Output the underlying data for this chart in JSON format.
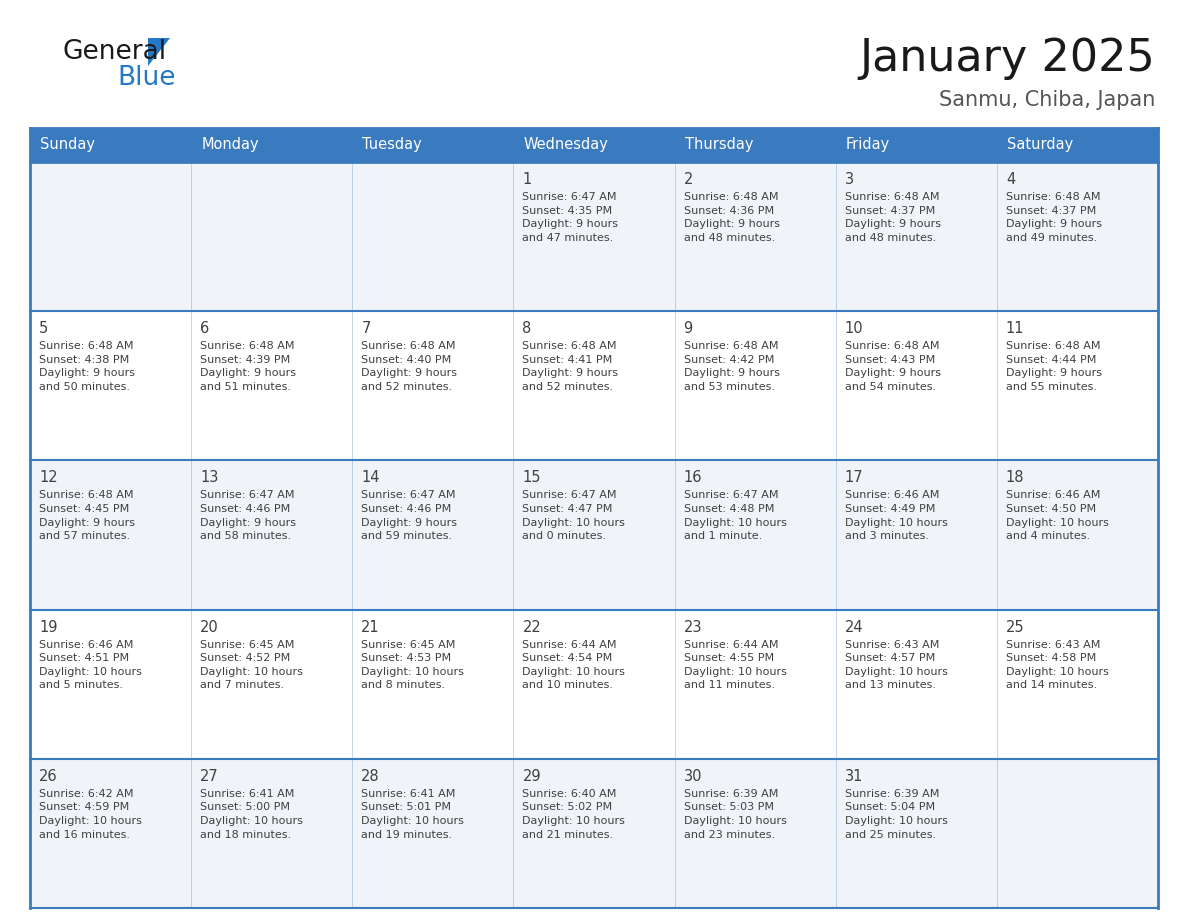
{
  "title": "January 2025",
  "subtitle": "Sanmu, Chiba, Japan",
  "header_color": "#3a7abf",
  "header_text_color": "#ffffff",
  "row_bg_colors": [
    "#f0f4f8",
    "#ffffff"
  ],
  "border_color": "#3a7abf",
  "text_color": "#404040",
  "days_of_week": [
    "Sunday",
    "Monday",
    "Tuesday",
    "Wednesday",
    "Thursday",
    "Friday",
    "Saturday"
  ],
  "calendar_data": [
    [
      "",
      "",
      "",
      "1\nSunrise: 6:47 AM\nSunset: 4:35 PM\nDaylight: 9 hours\nand 47 minutes.",
      "2\nSunrise: 6:48 AM\nSunset: 4:36 PM\nDaylight: 9 hours\nand 48 minutes.",
      "3\nSunrise: 6:48 AM\nSunset: 4:37 PM\nDaylight: 9 hours\nand 48 minutes.",
      "4\nSunrise: 6:48 AM\nSunset: 4:37 PM\nDaylight: 9 hours\nand 49 minutes."
    ],
    [
      "5\nSunrise: 6:48 AM\nSunset: 4:38 PM\nDaylight: 9 hours\nand 50 minutes.",
      "6\nSunrise: 6:48 AM\nSunset: 4:39 PM\nDaylight: 9 hours\nand 51 minutes.",
      "7\nSunrise: 6:48 AM\nSunset: 4:40 PM\nDaylight: 9 hours\nand 52 minutes.",
      "8\nSunrise: 6:48 AM\nSunset: 4:41 PM\nDaylight: 9 hours\nand 52 minutes.",
      "9\nSunrise: 6:48 AM\nSunset: 4:42 PM\nDaylight: 9 hours\nand 53 minutes.",
      "10\nSunrise: 6:48 AM\nSunset: 4:43 PM\nDaylight: 9 hours\nand 54 minutes.",
      "11\nSunrise: 6:48 AM\nSunset: 4:44 PM\nDaylight: 9 hours\nand 55 minutes."
    ],
    [
      "12\nSunrise: 6:48 AM\nSunset: 4:45 PM\nDaylight: 9 hours\nand 57 minutes.",
      "13\nSunrise: 6:47 AM\nSunset: 4:46 PM\nDaylight: 9 hours\nand 58 minutes.",
      "14\nSunrise: 6:47 AM\nSunset: 4:46 PM\nDaylight: 9 hours\nand 59 minutes.",
      "15\nSunrise: 6:47 AM\nSunset: 4:47 PM\nDaylight: 10 hours\nand 0 minutes.",
      "16\nSunrise: 6:47 AM\nSunset: 4:48 PM\nDaylight: 10 hours\nand 1 minute.",
      "17\nSunrise: 6:46 AM\nSunset: 4:49 PM\nDaylight: 10 hours\nand 3 minutes.",
      "18\nSunrise: 6:46 AM\nSunset: 4:50 PM\nDaylight: 10 hours\nand 4 minutes."
    ],
    [
      "19\nSunrise: 6:46 AM\nSunset: 4:51 PM\nDaylight: 10 hours\nand 5 minutes.",
      "20\nSunrise: 6:45 AM\nSunset: 4:52 PM\nDaylight: 10 hours\nand 7 minutes.",
      "21\nSunrise: 6:45 AM\nSunset: 4:53 PM\nDaylight: 10 hours\nand 8 minutes.",
      "22\nSunrise: 6:44 AM\nSunset: 4:54 PM\nDaylight: 10 hours\nand 10 minutes.",
      "23\nSunrise: 6:44 AM\nSunset: 4:55 PM\nDaylight: 10 hours\nand 11 minutes.",
      "24\nSunrise: 6:43 AM\nSunset: 4:57 PM\nDaylight: 10 hours\nand 13 minutes.",
      "25\nSunrise: 6:43 AM\nSunset: 4:58 PM\nDaylight: 10 hours\nand 14 minutes."
    ],
    [
      "26\nSunrise: 6:42 AM\nSunset: 4:59 PM\nDaylight: 10 hours\nand 16 minutes.",
      "27\nSunrise: 6:41 AM\nSunset: 5:00 PM\nDaylight: 10 hours\nand 18 minutes.",
      "28\nSunrise: 6:41 AM\nSunset: 5:01 PM\nDaylight: 10 hours\nand 19 minutes.",
      "29\nSunrise: 6:40 AM\nSunset: 5:02 PM\nDaylight: 10 hours\nand 21 minutes.",
      "30\nSunrise: 6:39 AM\nSunset: 5:03 PM\nDaylight: 10 hours\nand 23 minutes.",
      "31\nSunrise: 6:39 AM\nSunset: 5:04 PM\nDaylight: 10 hours\nand 25 minutes.",
      ""
    ]
  ],
  "logo_color_general": "#1a1a1a",
  "logo_color_blue": "#2478c8",
  "title_fontsize": 32,
  "subtitle_fontsize": 15,
  "header_fontsize": 10.5,
  "day_num_fontsize": 10.5,
  "cell_text_fontsize": 8.0
}
